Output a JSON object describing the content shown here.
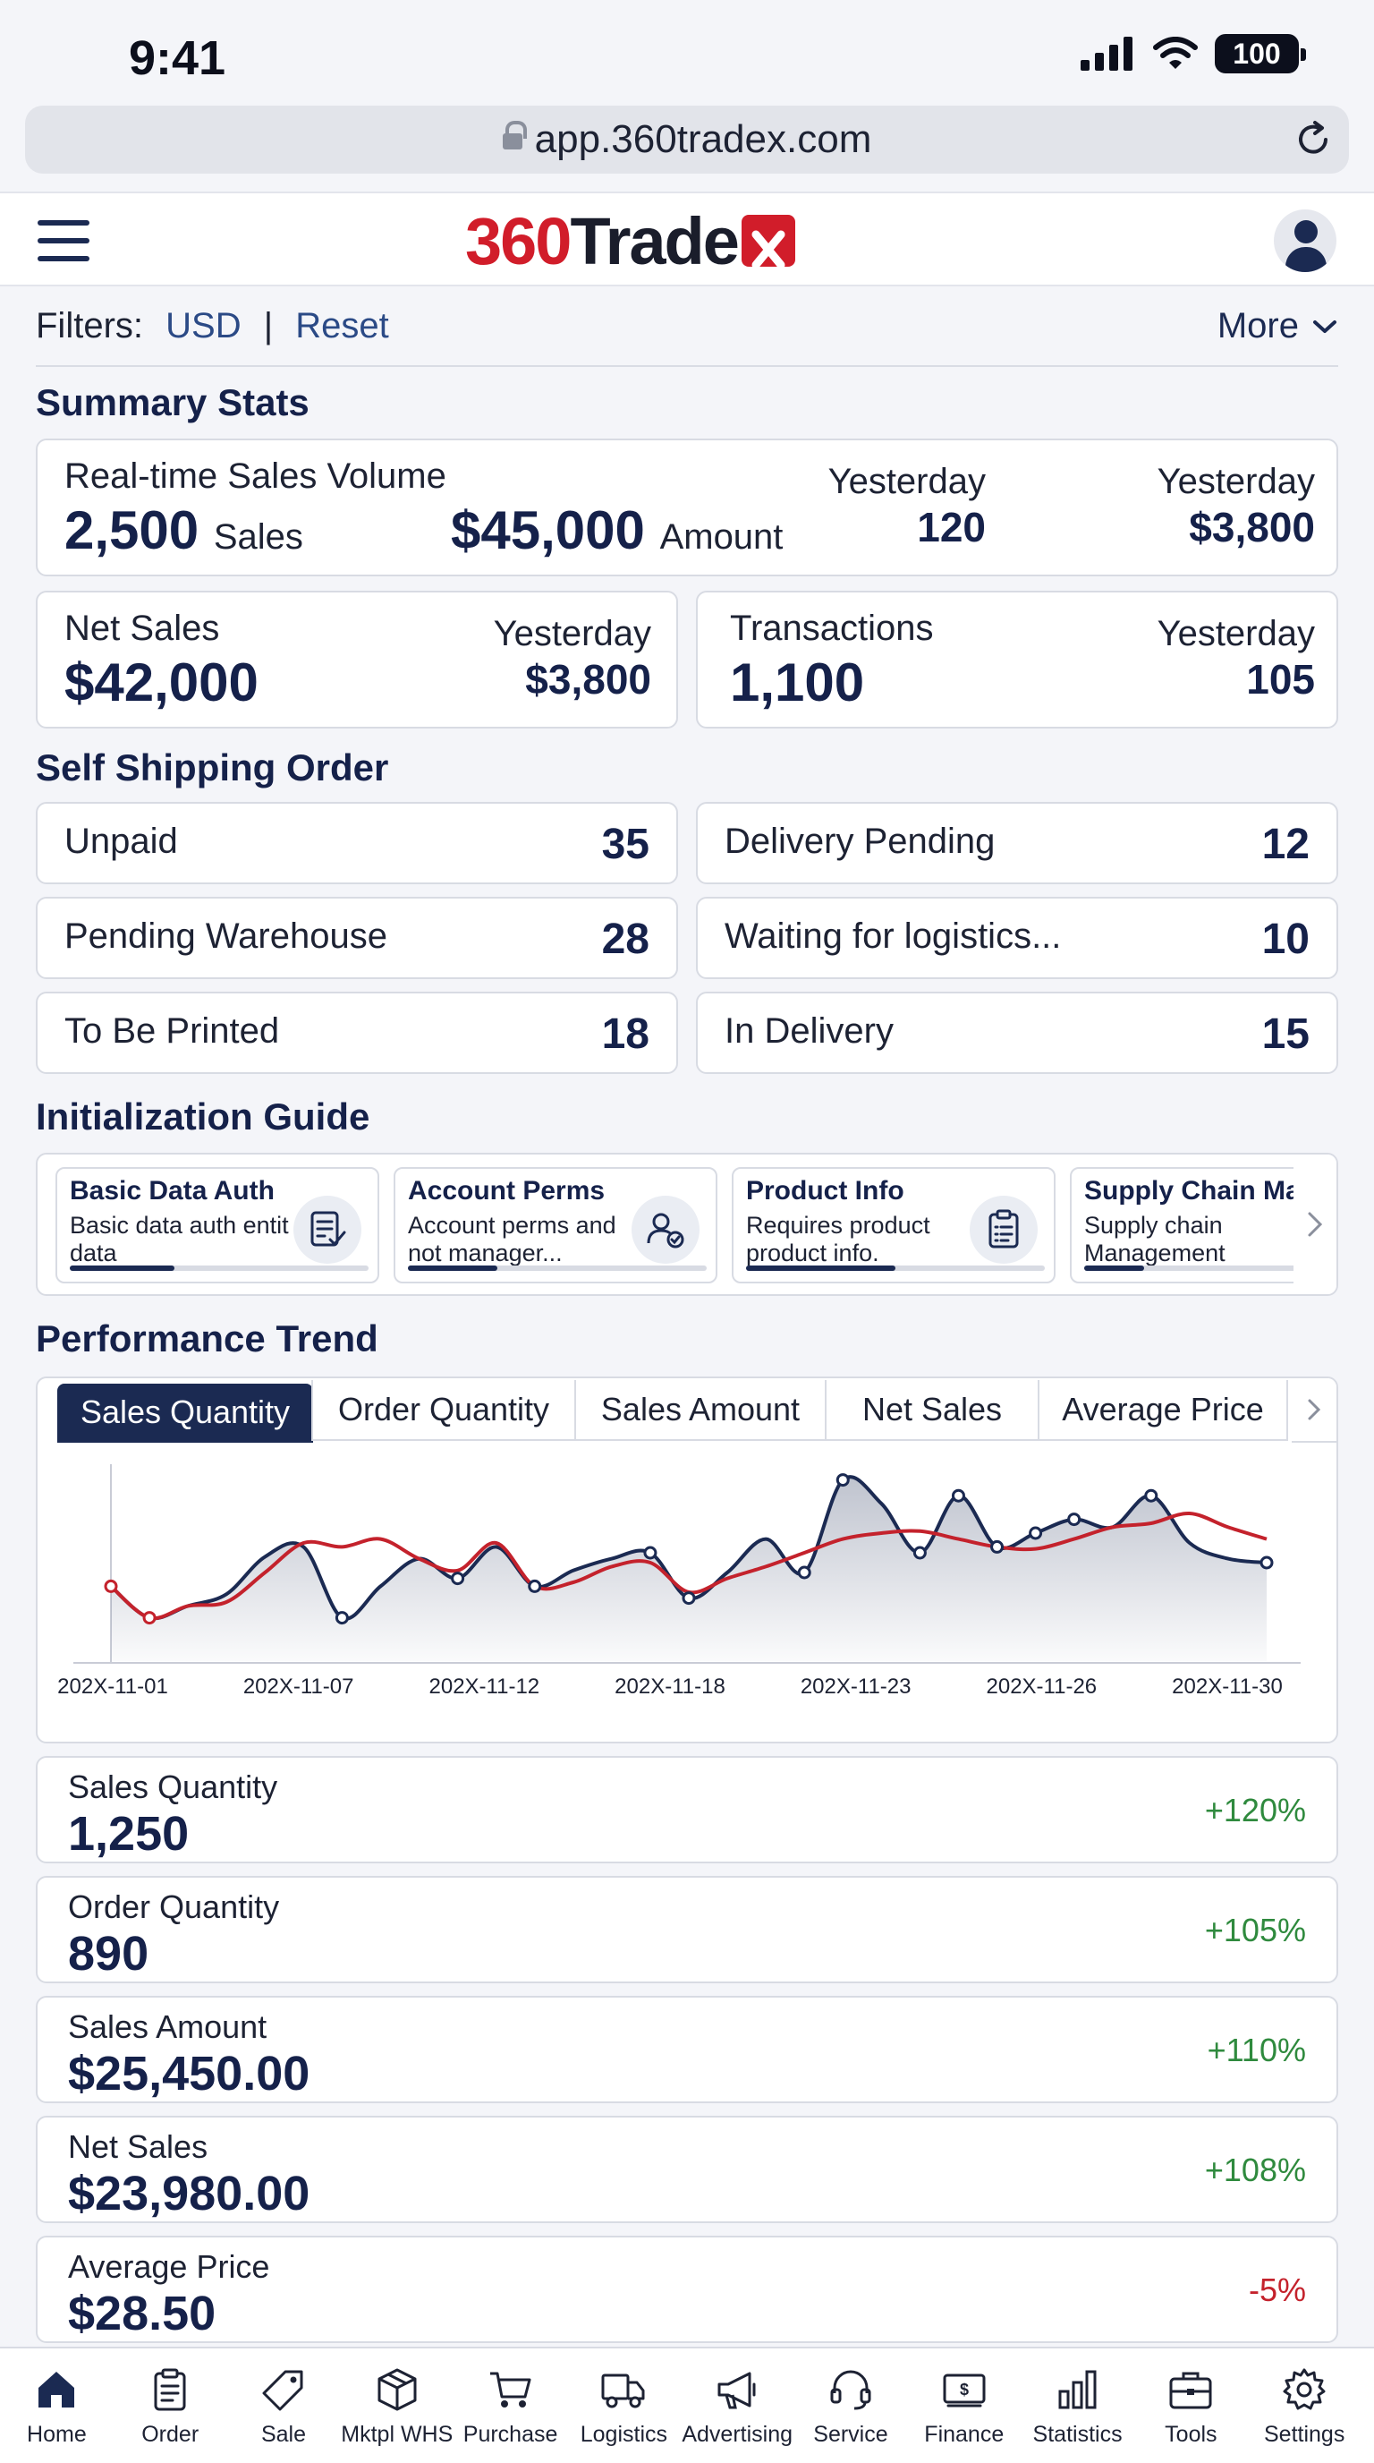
{
  "status_bar": {
    "time": "9:41",
    "battery": "100"
  },
  "browser": {
    "url": "app.360tradex.com"
  },
  "header": {
    "logo_red": "360",
    "logo_dark": "Trade"
  },
  "filters": {
    "label": "Filters:",
    "currency": "USD",
    "separator": "|",
    "reset": "Reset",
    "more": "More"
  },
  "summary": {
    "title": "Summary Stats",
    "realtime": {
      "label": "Real-time Sales Volume",
      "sales_value": "2,500",
      "sales_unit": "Sales",
      "amount_value": "$45,000",
      "amount_unit": "Amount",
      "yesterday_label": "Yesterday",
      "yesterday_sales": "120",
      "yesterday_amount": "$3,800"
    },
    "net_sales": {
      "label": "Net Sales",
      "value": "$42,000",
      "yesterday_label": "Yesterday",
      "yesterday_value": "$3,800"
    },
    "transactions": {
      "label": "Transactions",
      "value": "1,100",
      "yesterday_label": "Yesterday",
      "yesterday_value": "105"
    }
  },
  "self_shipping": {
    "title": "Self Shipping Order",
    "tiles": [
      {
        "label": "Unpaid",
        "count": "35"
      },
      {
        "label": "Delivery Pending",
        "count": "12"
      },
      {
        "label": "Pending Warehouse",
        "count": "28"
      },
      {
        "label": "Waiting for logistics...",
        "count": "10"
      },
      {
        "label": "To Be Printed",
        "count": "18"
      },
      {
        "label": "In Delivery",
        "count": "15"
      }
    ]
  },
  "guide": {
    "title": "Initialization Guide",
    "cards": [
      {
        "title": "Basic Data Auth",
        "desc": "Basic data auth entit data",
        "icon": "checklist-icon",
        "progress": 0.35
      },
      {
        "title": "Account Perms",
        "desc": "Account perms and not manager...",
        "icon": "user-check-icon",
        "progress": 0.3
      },
      {
        "title": "Product Info",
        "desc": "Requires product product info.",
        "icon": "clipboard-icon",
        "progress": 0.5
      },
      {
        "title": "Supply Chain Ma",
        "desc": "Supply chain Management",
        "icon": "supply-chain-icon",
        "progress": 0.2
      }
    ]
  },
  "performance": {
    "title": "Performance Trend",
    "tabs": [
      "Sales Quantity",
      "Order Quantity",
      "Sales Amount",
      "Net Sales",
      "Average Price"
    ],
    "active_tab": "Sales Quantity"
  },
  "chart_data": {
    "type": "line",
    "x_tick_labels": [
      "202X-11-01",
      "202X-11-07",
      "202X-11-12",
      "202X-11-18",
      "202X-11-23",
      "202X-11-26",
      "202X-11-30"
    ],
    "ylim": [
      0,
      100
    ],
    "grid": false,
    "series": [
      {
        "color": "#1b2a52",
        "fill": true,
        "x": [
          0,
          1,
          2,
          3,
          4,
          5,
          6,
          7,
          8,
          9,
          10,
          11,
          12,
          13,
          14,
          15,
          16,
          17,
          18,
          19,
          20,
          21,
          22,
          23,
          24,
          25,
          26,
          27,
          28,
          29,
          30
        ],
        "y": [
          38,
          22,
          28,
          34,
          53,
          58,
          22,
          38,
          52,
          42,
          58,
          38,
          46,
          52,
          55,
          32,
          45,
          62,
          45,
          92,
          80,
          55,
          84,
          58,
          65,
          72,
          68,
          84,
          60,
          52,
          50
        ]
      },
      {
        "color": "#c4222c",
        "fill": false,
        "x": [
          0,
          1,
          2,
          3,
          4,
          5,
          6,
          7,
          8,
          9,
          10,
          11,
          12,
          13,
          14,
          15,
          16,
          17,
          18,
          19,
          20,
          21,
          22,
          23,
          24,
          25,
          26,
          27,
          28,
          29,
          30
        ],
        "y": [
          38,
          22,
          28,
          30,
          45,
          60,
          58,
          62,
          52,
          46,
          60,
          38,
          40,
          48,
          50,
          35,
          42,
          48,
          55,
          62,
          65,
          66,
          62,
          58,
          57,
          62,
          68,
          70,
          75,
          68,
          62
        ]
      }
    ]
  },
  "metrics": [
    {
      "label": "Sales Quantity",
      "value": "1,250",
      "change": "+120%",
      "trend": "up"
    },
    {
      "label": "Order Quantity",
      "value": "890",
      "change": "+105%",
      "trend": "up"
    },
    {
      "label": "Sales Amount",
      "value": "$25,450.00",
      "change": "+110%",
      "trend": "up"
    },
    {
      "label": "Net Sales",
      "value": "$23,980.00",
      "change": "+108%",
      "trend": "up"
    },
    {
      "label": "Average Price",
      "value": "$28.50",
      "change": "-5%",
      "trend": "down"
    }
  ],
  "bottom_nav": [
    {
      "label": "Home",
      "icon": "home-icon",
      "active": true
    },
    {
      "label": "Order",
      "icon": "clipboard-icon"
    },
    {
      "label": "Sale",
      "icon": "tag-icon"
    },
    {
      "label": "Mktpl WHS",
      "icon": "box-icon"
    },
    {
      "label": "Purchase",
      "icon": "cart-icon"
    },
    {
      "label": "Logistics",
      "icon": "truck-icon"
    },
    {
      "label": "Advertising",
      "icon": "megaphone-icon"
    },
    {
      "label": "Service",
      "icon": "headset-icon"
    },
    {
      "label": "Finance",
      "icon": "money-icon"
    },
    {
      "label": "Statistics",
      "icon": "bar-chart-icon"
    },
    {
      "label": "Tools",
      "icon": "toolbox-icon"
    },
    {
      "label": "Settings",
      "icon": "gear-icon"
    }
  ]
}
